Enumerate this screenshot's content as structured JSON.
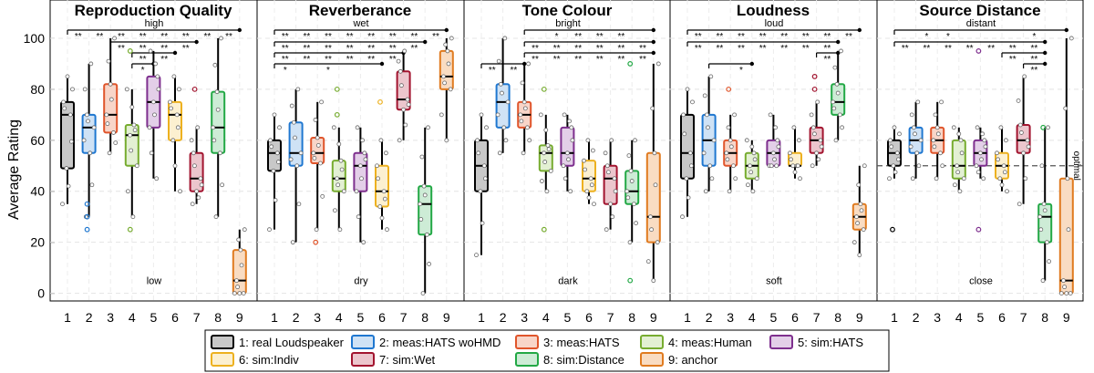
{
  "chart_data": {
    "type": "boxplot",
    "ylabel": "Average Rating",
    "ylim": [
      -3,
      115
    ],
    "yticks": [
      0,
      20,
      40,
      60,
      80,
      100
    ],
    "categories": [
      "1",
      "2",
      "3",
      "4",
      "5",
      "6",
      "7",
      "8",
      "9"
    ],
    "grid": true,
    "legend_position": "bottom",
    "series": [
      {
        "id": 1,
        "label": "1: real Loudspeaker",
        "color": "#000000",
        "fill": "#c8c8c8"
      },
      {
        "id": 2,
        "label": "2: meas:HATS woHMD",
        "color": "#1f77d0",
        "fill": "#cfe2f5"
      },
      {
        "id": 3,
        "label": "3: meas:HATS",
        "color": "#e0552b",
        "fill": "#f8d5c8"
      },
      {
        "id": 4,
        "label": "4: meas:Human",
        "color": "#77ac30",
        "fill": "#e3f0d3"
      },
      {
        "id": 5,
        "label": "5: sim:HATS",
        "color": "#7e2f8e",
        "fill": "#e3cfe8"
      },
      {
        "id": 6,
        "label": "6: sim:Indiv",
        "color": "#edb120",
        "fill": "#fcf0d0"
      },
      {
        "id": 7,
        "label": "7: sim:Wet",
        "color": "#a2142f",
        "fill": "#ecc6cd"
      },
      {
        "id": 8,
        "label": "8: sim:Distance",
        "color": "#22a845",
        "fill": "#cdecd6"
      },
      {
        "id": 9,
        "label": "9: anchor",
        "color": "#e07b20",
        "fill": "#f9dcc2"
      }
    ],
    "panels": [
      {
        "title": "Reproduction Quality",
        "top_label": "high",
        "bottom_label": "low",
        "optimal": null,
        "boxes": [
          [
            35,
            49,
            70,
            75,
            85
          ],
          [
            30,
            55,
            65,
            70,
            90
          ],
          [
            55,
            63,
            70,
            82,
            100
          ],
          [
            30,
            50,
            62,
            66,
            80
          ],
          [
            45,
            65,
            75,
            85,
            95
          ],
          [
            40,
            60,
            70,
            75,
            85
          ],
          [
            35,
            40,
            45,
            55,
            65
          ],
          [
            30,
            55,
            65,
            79,
            100
          ],
          [
            0,
            0,
            5,
            17,
            25
          ]
        ],
        "outliers": [
          [],
          [
            25,
            30,
            35
          ],
          [],
          [
            25,
            95
          ],
          [],
          [],
          [
            80
          ],
          [],
          []
        ],
        "sig": [
          {
            "a": 1,
            "b": 9,
            "labels": [
              [
                "1-2",
                "**"
              ],
              [
                "2-3",
                "**"
              ],
              [
                "3-4",
                "**"
              ],
              [
                "4-5",
                "**"
              ],
              [
                "5-6",
                "**"
              ],
              [
                "6-7",
                "**"
              ],
              [
                "7-8",
                "**"
              ],
              [
                "8-9",
                "**"
              ]
            ]
          },
          {
            "a": 3,
            "b": 7,
            "labels": [
              [
                "3-4",
                "**"
              ],
              [
                "4-5",
                "**"
              ],
              [
                "5-6",
                "**"
              ],
              [
                "6-7",
                "**"
              ]
            ]
          },
          {
            "a": 4,
            "b": 6,
            "labels": [
              [
                "4-5",
                "**"
              ],
              [
                "5-6",
                "**"
              ]
            ]
          },
          {
            "a": 4,
            "b": 5,
            "labels": [
              [
                "4-5",
                "*"
              ]
            ]
          }
        ]
      },
      {
        "title": "Reverberance",
        "top_label": "wet",
        "bottom_label": "dry",
        "optimal": null,
        "boxes": [
          [
            25,
            48,
            55,
            60,
            70
          ],
          [
            20,
            50,
            55,
            67,
            80
          ],
          [
            25,
            51,
            55,
            61,
            75
          ],
          [
            25,
            40,
            45,
            52,
            65
          ],
          [
            20,
            40,
            50,
            55,
            65
          ],
          [
            25,
            34,
            40,
            50,
            60
          ],
          [
            60,
            72,
            76,
            87,
            95
          ],
          [
            0,
            23,
            35,
            42,
            65
          ],
          [
            60,
            80,
            85,
            95,
            100
          ]
        ],
        "outliers": [
          [],
          [],
          [
            20
          ],
          [
            70,
            80
          ],
          [],
          [
            75
          ],
          [],
          [],
          []
        ],
        "sig": [
          {
            "a": 1,
            "b": 9,
            "labels": [
              [
                "1-2",
                "**"
              ],
              [
                "2-3",
                "**"
              ],
              [
                "3-4",
                "**"
              ],
              [
                "4-5",
                "**"
              ],
              [
                "5-6",
                "**"
              ],
              [
                "6-7",
                "**"
              ],
              [
                "7-8",
                "**"
              ],
              [
                "8-9",
                "**"
              ]
            ]
          },
          {
            "a": 1,
            "b": 8,
            "labels": [
              [
                "1-2",
                "**"
              ],
              [
                "2-3",
                "**"
              ],
              [
                "3-4",
                "**"
              ],
              [
                "4-5",
                "**"
              ],
              [
                "5-6",
                "**"
              ],
              [
                "6-7",
                "**"
              ],
              [
                "7-8",
                "**"
              ]
            ]
          },
          {
            "a": 1,
            "b": 7,
            "labels": [
              [
                "1-2",
                "**"
              ],
              [
                "2-3",
                "**"
              ],
              [
                "3-4",
                "**"
              ],
              [
                "4-5",
                "**"
              ],
              [
                "5-6",
                "**"
              ],
              [
                "6-7",
                "**"
              ]
            ]
          },
          {
            "a": 1,
            "b": 6,
            "labels": [
              [
                "1-2",
                "*"
              ],
              [
                "3-4",
                "*"
              ]
            ]
          }
        ]
      },
      {
        "title": "Tone Colour",
        "top_label": "bright",
        "bottom_label": "dark",
        "optimal": null,
        "boxes": [
          [
            15,
            40,
            50,
            60,
            70
          ],
          [
            55,
            65,
            75,
            82,
            100
          ],
          [
            55,
            65,
            70,
            75,
            90
          ],
          [
            40,
            48,
            55,
            58,
            70
          ],
          [
            40,
            50,
            55,
            65,
            70
          ],
          [
            35,
            40,
            45,
            52,
            60
          ],
          [
            25,
            35,
            45,
            50,
            60
          ],
          [
            20,
            35,
            40,
            48,
            60
          ],
          [
            5,
            20,
            30,
            55,
            90
          ]
        ],
        "outliers": [
          [],
          [],
          [],
          [
            25,
            80
          ],
          [],
          [],
          [],
          [
            5,
            90
          ],
          []
        ],
        "sig": [
          {
            "a": 3,
            "b": 9,
            "labels": [
              [
                "4-5",
                "*"
              ],
              [
                "5-6",
                "**"
              ],
              [
                "6-7",
                "**"
              ],
              [
                "7-8",
                "**"
              ]
            ]
          },
          {
            "a": 3,
            "b": 9,
            "labels": [
              [
                "3-4",
                "**"
              ],
              [
                "4-5",
                "**"
              ],
              [
                "5-6",
                "**"
              ],
              [
                "6-7",
                "**"
              ],
              [
                "7-8",
                "**"
              ],
              [
                "8-9",
                "**"
              ]
            ]
          },
          {
            "a": 3,
            "b": 9,
            "labels": [
              [
                "3-4",
                "**"
              ],
              [
                "4-5",
                "**"
              ],
              [
                "5-6",
                "**"
              ],
              [
                "6-7",
                "**"
              ],
              [
                "7-8",
                "**"
              ],
              [
                "8-9",
                "**"
              ]
            ]
          },
          {
            "a": 1,
            "b": 3,
            "labels": [
              [
                "1-2",
                "**"
              ],
              [
                "2-3",
                "**"
              ]
            ]
          }
        ]
      },
      {
        "title": "Loudness",
        "top_label": "loud",
        "bottom_label": "soft",
        "optimal": null,
        "boxes": [
          [
            30,
            45,
            55,
            70,
            80
          ],
          [
            40,
            50,
            60,
            70,
            85
          ],
          [
            40,
            50,
            55,
            60,
            70
          ],
          [
            40,
            45,
            50,
            55,
            60
          ],
          [
            50,
            50,
            55,
            60,
            70
          ],
          [
            45,
            50,
            50,
            55,
            65
          ],
          [
            50,
            55,
            60,
            65,
            75
          ],
          [
            60,
            70,
            75,
            82,
            95
          ],
          [
            15,
            25,
            30,
            35,
            50
          ]
        ],
        "outliers": [
          [],
          [],
          [
            80
          ],
          [],
          [],
          [],
          [
            80,
            85
          ],
          [],
          []
        ],
        "sig": [
          {
            "a": 1,
            "b": 9,
            "labels": [
              [
                "1-2",
                "**"
              ],
              [
                "2-3",
                "**"
              ],
              [
                "3-4",
                "**"
              ],
              [
                "4-5",
                "**"
              ],
              [
                "5-6",
                "**"
              ],
              [
                "6-7",
                "**"
              ],
              [
                "7-8",
                "**"
              ],
              [
                "8-9",
                "**"
              ]
            ]
          },
          {
            "a": 1,
            "b": 8,
            "labels": [
              [
                "1-2",
                "**"
              ],
              [
                "2-3",
                "**"
              ],
              [
                "3-4",
                "**"
              ],
              [
                "4-5",
                "**"
              ],
              [
                "5-6",
                "**"
              ],
              [
                "6-7",
                "**"
              ],
              [
                "7-8",
                "**"
              ]
            ]
          },
          {
            "a": 7,
            "b": 8,
            "labels": [
              [
                "7-8",
                "**"
              ]
            ]
          },
          {
            "a": 2,
            "b": 4,
            "labels": [
              [
                "3-4",
                "*"
              ]
            ]
          }
        ]
      },
      {
        "title": "Source Distance",
        "top_label": "distant",
        "bottom_label": "close",
        "optimal": 50,
        "optimal_label": "optimal",
        "boxes": [
          [
            45,
            50,
            55,
            60,
            65
          ],
          [
            45,
            55,
            60,
            65,
            75
          ],
          [
            45,
            55,
            60,
            65,
            75
          ],
          [
            40,
            45,
            50,
            60,
            65
          ],
          [
            45,
            50,
            55,
            60,
            65
          ],
          [
            40,
            45,
            50,
            55,
            65
          ],
          [
            35,
            55,
            60,
            66,
            85
          ],
          [
            5,
            20,
            30,
            35,
            65
          ],
          [
            0,
            0,
            5,
            45,
            100
          ]
        ],
        "outliers": [
          [
            25
          ],
          [],
          [],
          [],
          [
            25,
            95
          ],
          [],
          [],
          [
            65
          ],
          []
        ],
        "sig": [
          {
            "a": 1,
            "b": 9,
            "labels": [
              [
                "2-3",
                "*"
              ],
              [
                "3-4",
                "*"
              ],
              [
                "7-8",
                "*"
              ]
            ]
          },
          {
            "a": 1,
            "b": 8,
            "labels": [
              [
                "1-2",
                "**"
              ],
              [
                "2-3",
                "**"
              ],
              [
                "3-4",
                "**"
              ],
              [
                "4-5",
                "**"
              ],
              [
                "5-6",
                "**"
              ],
              [
                "6-7",
                "**"
              ],
              [
                "7-8",
                "**"
              ]
            ]
          },
          {
            "a": 6,
            "b": 8,
            "labels": [
              [
                "6-7",
                "**"
              ],
              [
                "7-8",
                "**"
              ]
            ]
          },
          {
            "a": 7,
            "b": 8,
            "labels": [
              [
                "7-8",
                "**"
              ]
            ]
          }
        ]
      }
    ]
  }
}
